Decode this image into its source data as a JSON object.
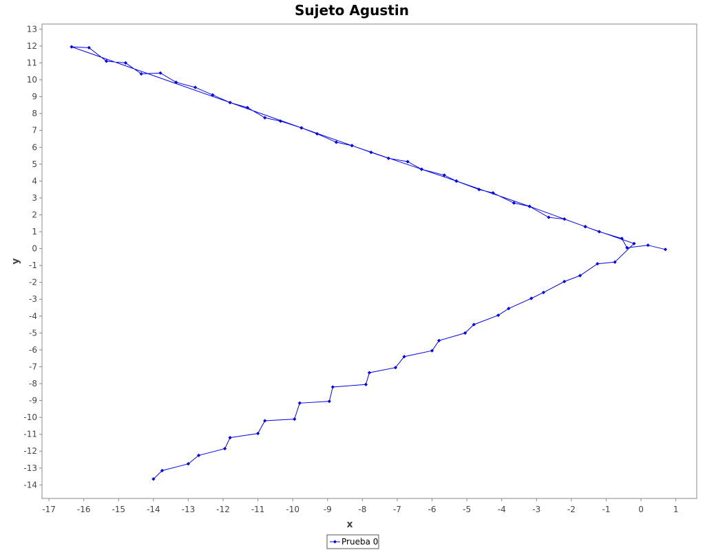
{
  "chart_data": {
    "type": "line",
    "title": "Sujeto Agustin",
    "xlabel": "x",
    "ylabel": "y",
    "xlim": [
      -17.2,
      1.6
    ],
    "ylim": [
      -14.8,
      13.3
    ],
    "x_ticks": [
      -17,
      -16,
      -15,
      -14,
      -13,
      -12,
      -11,
      -10,
      -9,
      -8,
      -7,
      -6,
      -5,
      -4,
      -3,
      -2,
      -1,
      0,
      1
    ],
    "y_ticks": [
      13,
      12,
      11,
      10,
      9,
      8,
      7,
      6,
      5,
      4,
      3,
      2,
      1,
      0,
      -1,
      -2,
      -3,
      -4,
      -5,
      -6,
      -7,
      -8,
      -9,
      -10,
      -11,
      -12,
      -13,
      -14
    ],
    "grid": false,
    "legend_position": "bottom-center",
    "series": [
      {
        "name": "Prueba 0",
        "color": "#0000ee",
        "marker": "diamond",
        "points": [
          [
            0.7,
            -0.05
          ],
          [
            0.2,
            0.2
          ],
          [
            -0.4,
            0.05
          ],
          [
            -0.55,
            0.6
          ],
          [
            -1.2,
            1.0
          ],
          [
            -1.6,
            1.3
          ],
          [
            -2.2,
            1.75
          ],
          [
            -2.65,
            1.85
          ],
          [
            -3.2,
            2.5
          ],
          [
            -3.65,
            2.7
          ],
          [
            -4.25,
            3.3
          ],
          [
            -4.65,
            3.5
          ],
          [
            -5.3,
            4.0
          ],
          [
            -5.65,
            4.35
          ],
          [
            -6.3,
            4.7
          ],
          [
            -6.7,
            5.15
          ],
          [
            -7.25,
            5.35
          ],
          [
            -7.75,
            5.7
          ],
          [
            -8.3,
            6.1
          ],
          [
            -8.75,
            6.3
          ],
          [
            -9.3,
            6.8
          ],
          [
            -9.75,
            7.15
          ],
          [
            -10.35,
            7.55
          ],
          [
            -10.8,
            7.75
          ],
          [
            -11.3,
            8.35
          ],
          [
            -11.8,
            8.65
          ],
          [
            -12.3,
            9.1
          ],
          [
            -12.8,
            9.55
          ],
          [
            -13.35,
            9.85
          ],
          [
            -13.8,
            10.4
          ],
          [
            -14.35,
            10.35
          ],
          [
            -14.8,
            11.0
          ],
          [
            -15.35,
            11.1
          ],
          [
            -15.85,
            11.9
          ],
          [
            -16.35,
            11.95
          ],
          [
            -11.8,
            8.65
          ],
          [
            -9.75,
            7.15
          ],
          [
            -8.3,
            6.1
          ],
          [
            -6.3,
            4.7
          ],
          [
            -5.3,
            4.0
          ],
          [
            -3.2,
            2.5
          ],
          [
            -1.6,
            1.3
          ],
          [
            -0.2,
            0.3
          ],
          [
            -0.75,
            -0.8
          ],
          [
            -1.25,
            -0.9
          ],
          [
            -1.75,
            -1.6
          ],
          [
            -2.2,
            -1.95
          ],
          [
            -2.8,
            -2.6
          ],
          [
            -3.15,
            -2.95
          ],
          [
            -3.8,
            -3.55
          ],
          [
            -4.1,
            -3.95
          ],
          [
            -4.8,
            -4.5
          ],
          [
            -5.05,
            -5.0
          ],
          [
            -5.8,
            -5.45
          ],
          [
            -6.0,
            -6.05
          ],
          [
            -6.8,
            -6.4
          ],
          [
            -7.05,
            -7.05
          ],
          [
            -7.8,
            -7.35
          ],
          [
            -7.9,
            -8.05
          ],
          [
            -8.85,
            -8.2
          ],
          [
            -8.95,
            -9.05
          ],
          [
            -9.8,
            -9.15
          ],
          [
            -9.95,
            -10.1
          ],
          [
            -10.8,
            -10.2
          ],
          [
            -11.0,
            -10.95
          ],
          [
            -11.8,
            -11.2
          ],
          [
            -11.95,
            -11.85
          ],
          [
            -12.7,
            -12.25
          ],
          [
            -13.0,
            -12.75
          ],
          [
            -13.75,
            -13.15
          ],
          [
            -14.0,
            -13.65
          ]
        ]
      }
    ]
  }
}
